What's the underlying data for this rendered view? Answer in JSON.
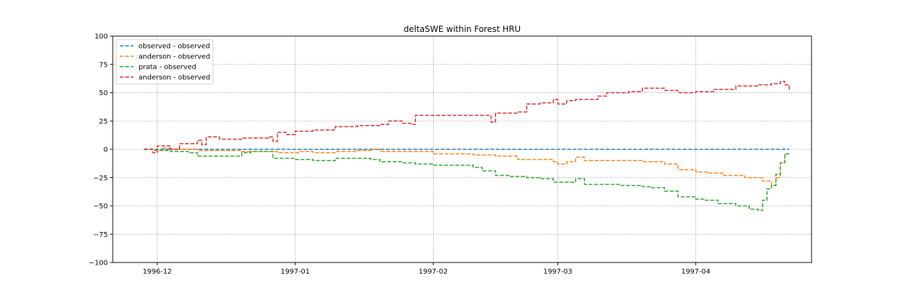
{
  "chart_data": {
    "type": "line",
    "title": "deltaSWE within Forest HRU",
    "xlabel": "",
    "ylabel": "",
    "xlim": [
      "1996-11-21",
      "1997-04-27"
    ],
    "ylim": [
      -100,
      100
    ],
    "y_ticks": [
      100,
      75,
      50,
      25,
      0,
      -25,
      -50,
      -75,
      -100
    ],
    "x_ticks": [
      {
        "date": "1996-12-01",
        "label": "1996-12"
      },
      {
        "date": "1997-01-01",
        "label": "1997-01"
      },
      {
        "date": "1997-02-01",
        "label": "1997-02"
      },
      {
        "date": "1997-03-01",
        "label": "1997-03"
      },
      {
        "date": "1997-04-01",
        "label": "1997-04"
      }
    ],
    "grid": true,
    "grid_style": "dotted",
    "line_style": "dashed",
    "legend_position": "top-left",
    "series": [
      {
        "name": "observed - observed",
        "color": "#1f77b4",
        "points": [
          [
            "1996-11-28",
            0
          ],
          [
            "1997-04-22",
            0
          ]
        ]
      },
      {
        "name": "anderson - observed",
        "color": "#ff7f0e",
        "points": [
          [
            "1996-11-28",
            0
          ],
          [
            "1996-11-30",
            -1
          ],
          [
            "1996-12-02",
            1
          ],
          [
            "1996-12-04",
            0
          ],
          [
            "1996-12-06",
            0
          ],
          [
            "1996-12-10",
            -1
          ],
          [
            "1996-12-15",
            -1
          ],
          [
            "1996-12-20",
            -2
          ],
          [
            "1996-12-25",
            -2
          ],
          [
            "1996-12-28",
            -3
          ],
          [
            "1997-01-02",
            -2
          ],
          [
            "1997-01-05",
            -3
          ],
          [
            "1997-01-10",
            -2
          ],
          [
            "1997-01-15",
            -1
          ],
          [
            "1997-01-18",
            0
          ],
          [
            "1997-01-20",
            -2
          ],
          [
            "1997-01-25",
            -2
          ],
          [
            "1997-02-01",
            -4
          ],
          [
            "1997-02-05",
            -4
          ],
          [
            "1997-02-10",
            -5
          ],
          [
            "1997-02-15",
            -6
          ],
          [
            "1997-02-20",
            -9
          ],
          [
            "1997-02-25",
            -9
          ],
          [
            "1997-02-28",
            -11
          ],
          [
            "1997-03-01",
            -13
          ],
          [
            "1997-03-03",
            -11
          ],
          [
            "1997-03-05",
            -7
          ],
          [
            "1997-03-07",
            -10
          ],
          [
            "1997-03-10",
            -10
          ],
          [
            "1997-03-20",
            -11
          ],
          [
            "1997-03-25",
            -13
          ],
          [
            "1997-03-28",
            -18
          ],
          [
            "1997-04-01",
            -20
          ],
          [
            "1997-04-04",
            -21
          ],
          [
            "1997-04-07",
            -23
          ],
          [
            "1997-04-12",
            -25
          ],
          [
            "1997-04-16",
            -28
          ],
          [
            "1997-04-18",
            -32
          ],
          [
            "1997-04-19",
            -25
          ],
          [
            "1997-04-20",
            -12
          ],
          [
            "1997-04-21",
            -4
          ],
          [
            "1997-04-22",
            -4
          ]
        ]
      },
      {
        "name": "prata - observed",
        "color": "#2ca02c",
        "points": [
          [
            "1996-11-28",
            0
          ],
          [
            "1996-12-02",
            -1
          ],
          [
            "1996-12-04",
            -2
          ],
          [
            "1996-12-06",
            -2
          ],
          [
            "1996-12-08",
            -3
          ],
          [
            "1996-12-10",
            -6
          ],
          [
            "1996-12-15",
            -6
          ],
          [
            "1996-12-20",
            -3
          ],
          [
            "1996-12-22",
            -2
          ],
          [
            "1996-12-26",
            -2
          ],
          [
            "1996-12-27",
            -8
          ],
          [
            "1997-01-01",
            -9
          ],
          [
            "1997-01-05",
            -10
          ],
          [
            "1997-01-10",
            -8
          ],
          [
            "1997-01-15",
            -8
          ],
          [
            "1997-01-18",
            -9
          ],
          [
            "1997-01-20",
            -11
          ],
          [
            "1997-01-25",
            -12
          ],
          [
            "1997-01-28",
            -13
          ],
          [
            "1997-02-01",
            -14
          ],
          [
            "1997-02-05",
            -14
          ],
          [
            "1997-02-10",
            -16
          ],
          [
            "1997-02-12",
            -19
          ],
          [
            "1997-02-15",
            -23
          ],
          [
            "1997-02-18",
            -24
          ],
          [
            "1997-02-22",
            -25
          ],
          [
            "1997-02-25",
            -26
          ],
          [
            "1997-02-28",
            -29
          ],
          [
            "1997-03-01",
            -29
          ],
          [
            "1997-03-03",
            -29
          ],
          [
            "1997-03-05",
            -26
          ],
          [
            "1997-03-07",
            -31
          ],
          [
            "1997-03-15",
            -32
          ],
          [
            "1997-03-20",
            -33
          ],
          [
            "1997-03-22",
            -34
          ],
          [
            "1997-03-25",
            -37
          ],
          [
            "1997-03-28",
            -42
          ],
          [
            "1997-04-01",
            -44
          ],
          [
            "1997-04-03",
            -45
          ],
          [
            "1997-04-06",
            -48
          ],
          [
            "1997-04-10",
            -50
          ],
          [
            "1997-04-13",
            -53
          ],
          [
            "1997-04-15",
            -54
          ],
          [
            "1997-04-16",
            -45
          ],
          [
            "1997-04-17",
            -35
          ],
          [
            "1997-04-18",
            -32
          ],
          [
            "1997-04-19",
            -22
          ],
          [
            "1997-04-20",
            -12
          ],
          [
            "1997-04-21",
            -4
          ],
          [
            "1997-04-22",
            -4
          ]
        ]
      },
      {
        "name": "anderson - observed",
        "color": "#d62728",
        "points": [
          [
            "1996-11-28",
            0
          ],
          [
            "1996-11-30",
            -3
          ],
          [
            "1996-12-01",
            3
          ],
          [
            "1996-12-03",
            3
          ],
          [
            "1996-12-04",
            0
          ],
          [
            "1996-12-06",
            5
          ],
          [
            "1996-12-08",
            5
          ],
          [
            "1996-12-10",
            8
          ],
          [
            "1996-12-11",
            4
          ],
          [
            "1996-12-12",
            11
          ],
          [
            "1996-12-15",
            9
          ],
          [
            "1996-12-20",
            10
          ],
          [
            "1996-12-24",
            10
          ],
          [
            "1996-12-26",
            11
          ],
          [
            "1996-12-27",
            7
          ],
          [
            "1996-12-28",
            15
          ],
          [
            "1996-12-30",
            13
          ],
          [
            "1997-01-01",
            16
          ],
          [
            "1997-01-05",
            17
          ],
          [
            "1997-01-10",
            20
          ],
          [
            "1997-01-15",
            21
          ],
          [
            "1997-01-20",
            22
          ],
          [
            "1997-01-22",
            25
          ],
          [
            "1997-01-25",
            23
          ],
          [
            "1997-01-27",
            22
          ],
          [
            "1997-01-28",
            30
          ],
          [
            "1997-02-01",
            30
          ],
          [
            "1997-02-05",
            30
          ],
          [
            "1997-02-10",
            30
          ],
          [
            "1997-02-12",
            30
          ],
          [
            "1997-02-14",
            24
          ],
          [
            "1997-02-15",
            32
          ],
          [
            "1997-02-20",
            33
          ],
          [
            "1997-02-22",
            40
          ],
          [
            "1997-02-25",
            41
          ],
          [
            "1997-02-28",
            44
          ],
          [
            "1997-03-01",
            40
          ],
          [
            "1997-03-03",
            43
          ],
          [
            "1997-03-05",
            44
          ],
          [
            "1997-03-10",
            47
          ],
          [
            "1997-03-12",
            50
          ],
          [
            "1997-03-17",
            51
          ],
          [
            "1997-03-20",
            54
          ],
          [
            "1997-03-25",
            52
          ],
          [
            "1997-03-28",
            50
          ],
          [
            "1997-04-01",
            51
          ],
          [
            "1997-04-05",
            53
          ],
          [
            "1997-04-10",
            56
          ],
          [
            "1997-04-15",
            57
          ],
          [
            "1997-04-18",
            58
          ],
          [
            "1997-04-20",
            60
          ],
          [
            "1997-04-21",
            57
          ],
          [
            "1997-04-22",
            51
          ]
        ]
      }
    ]
  }
}
